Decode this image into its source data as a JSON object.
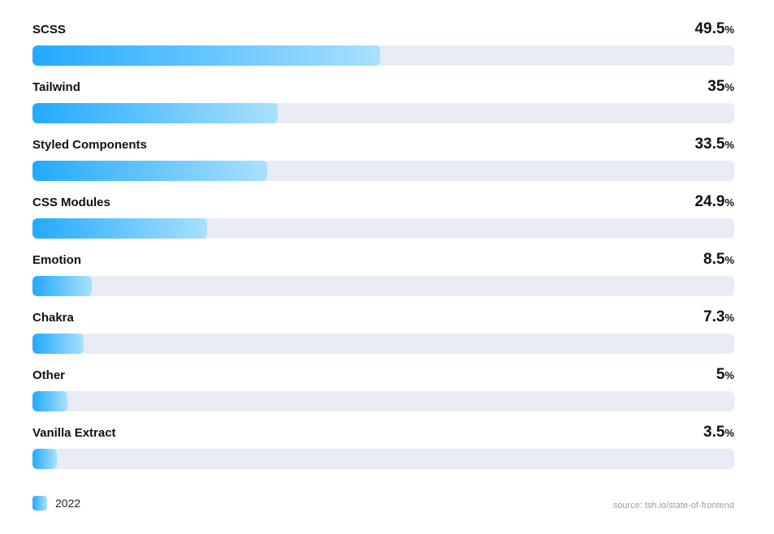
{
  "chart_data": {
    "type": "bar",
    "orientation": "horizontal",
    "categories": [
      "SCSS",
      "Tailwind",
      "Styled Components",
      "CSS Modules",
      "Emotion",
      "Chakra",
      "Other",
      "Vanilla Extract"
    ],
    "series": [
      {
        "name": "2022",
        "values": [
          49.5,
          35,
          33.5,
          24.9,
          8.5,
          7.3,
          5,
          3.5
        ],
        "value_labels": [
          "49.5",
          "35",
          "33.5",
          "24.9",
          "8.5",
          "7.3",
          "5",
          "3.5"
        ]
      }
    ],
    "unit": "%",
    "xlim": [
      0,
      100
    ],
    "title": "",
    "xlabel": "",
    "ylabel": "",
    "grid": false,
    "legend": {
      "position": "bottom-left",
      "entries": [
        "2022"
      ]
    },
    "source": "source: tsh.io/state-of-frontend",
    "colors": {
      "bar_start": "#22aaff",
      "bar_end": "#a9e0ff",
      "track": "#e8ecf5"
    }
  }
}
